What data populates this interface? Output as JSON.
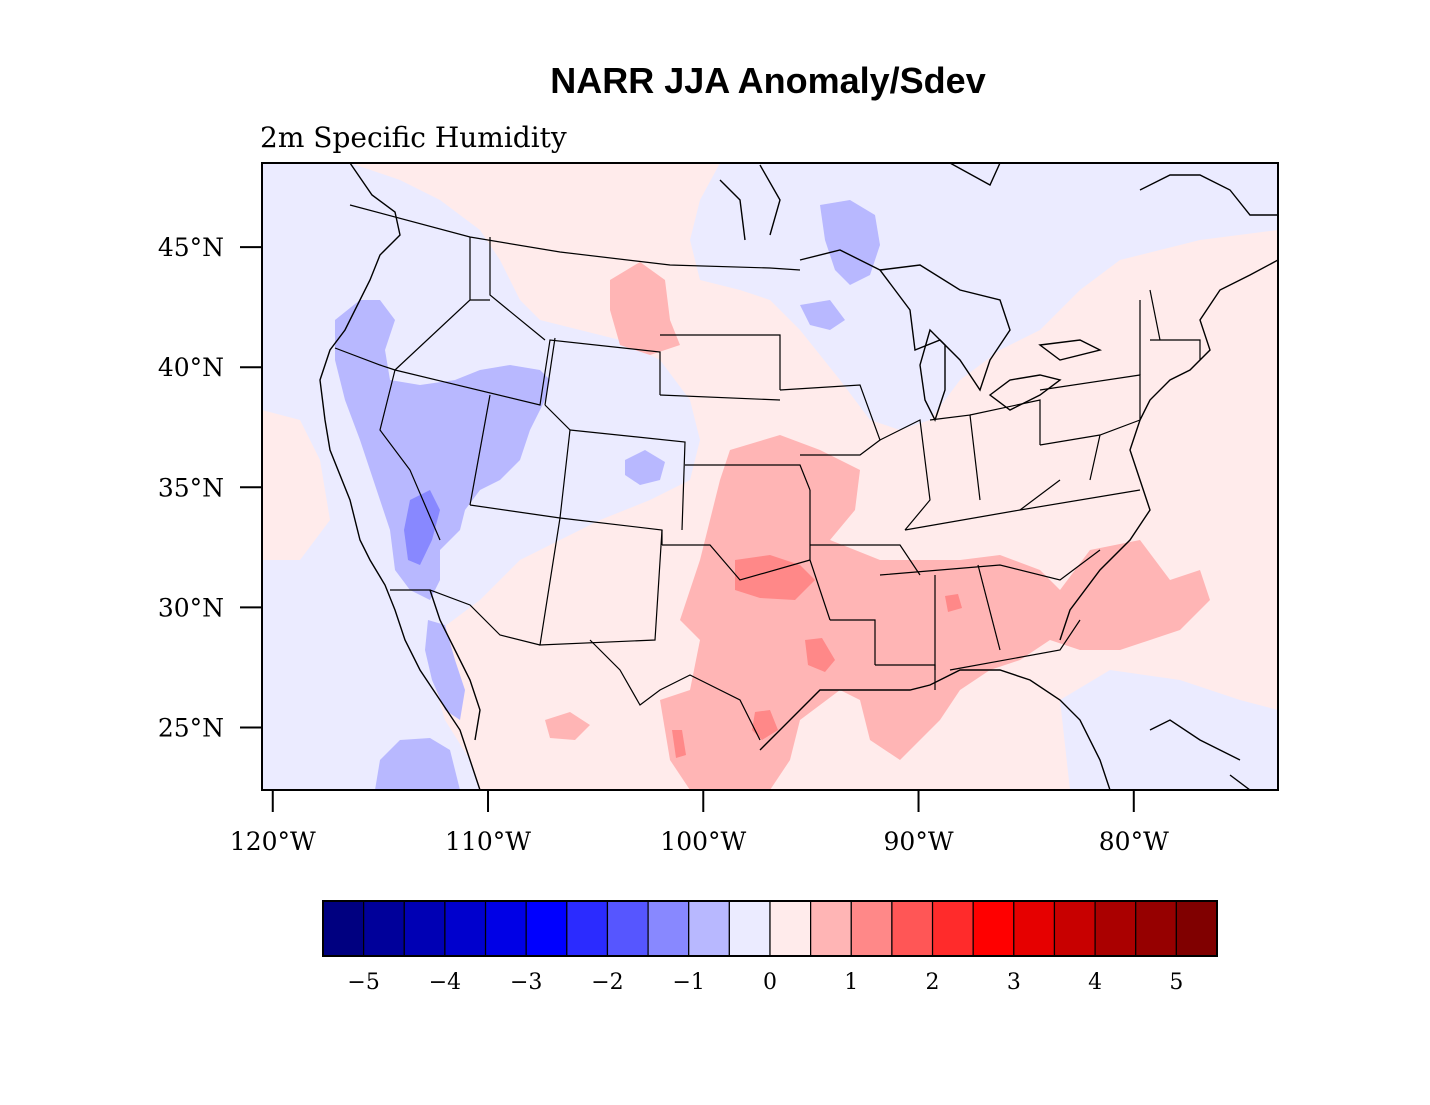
{
  "title": "NARR JJA Anomaly/Sdev",
  "subtitle": "2m Specific Humidity",
  "map": {
    "projection": "lat-lon",
    "lon_range": [
      -120.5,
      -73.3
    ],
    "lat_range": [
      22.4,
      48.5
    ],
    "lat_ticks": [
      {
        "value": 45,
        "label": "45°N"
      },
      {
        "value": 40,
        "label": "40°N"
      },
      {
        "value": 35,
        "label": "35°N"
      },
      {
        "value": 30,
        "label": "30°N"
      },
      {
        "value": 25,
        "label": "25°N"
      }
    ],
    "lon_ticks": [
      {
        "value": -120,
        "label": "120°W"
      },
      {
        "value": -110,
        "label": "110°W"
      },
      {
        "value": -100,
        "label": "100°W"
      },
      {
        "value": -90,
        "label": "90°W"
      },
      {
        "value": -80,
        "label": "80°W"
      }
    ],
    "background_color": "#ebebff",
    "regions": [
      {
        "name": "positive-anomaly-east",
        "color": "#ffebeb"
      },
      {
        "name": "positive-anomaly-central",
        "color": "#ffb5b5"
      },
      {
        "name": "positive-anomaly-strong",
        "color": "#ff8888"
      },
      {
        "name": "negative-anomaly-west",
        "color": "#b8b8ff"
      },
      {
        "name": "negative-anomaly-strong",
        "color": "#8888ff"
      }
    ]
  },
  "colorbar": {
    "colors": [
      "#000080",
      "#00009a",
      "#0000b4",
      "#0000cd",
      "#0000e6",
      "#0000ff",
      "#2b2bff",
      "#5656ff",
      "#8888ff",
      "#b8b8ff",
      "#ebebff",
      "#ffebeb",
      "#ffb5b5",
      "#ff8888",
      "#ff5656",
      "#ff2b2b",
      "#ff0000",
      "#e60000",
      "#c80000",
      "#aa0000",
      "#960000",
      "#800000"
    ],
    "tick_labels": [
      "−5",
      "−4",
      "−3",
      "−2",
      "−1",
      "0",
      "1",
      "2",
      "3",
      "4",
      "5"
    ]
  }
}
